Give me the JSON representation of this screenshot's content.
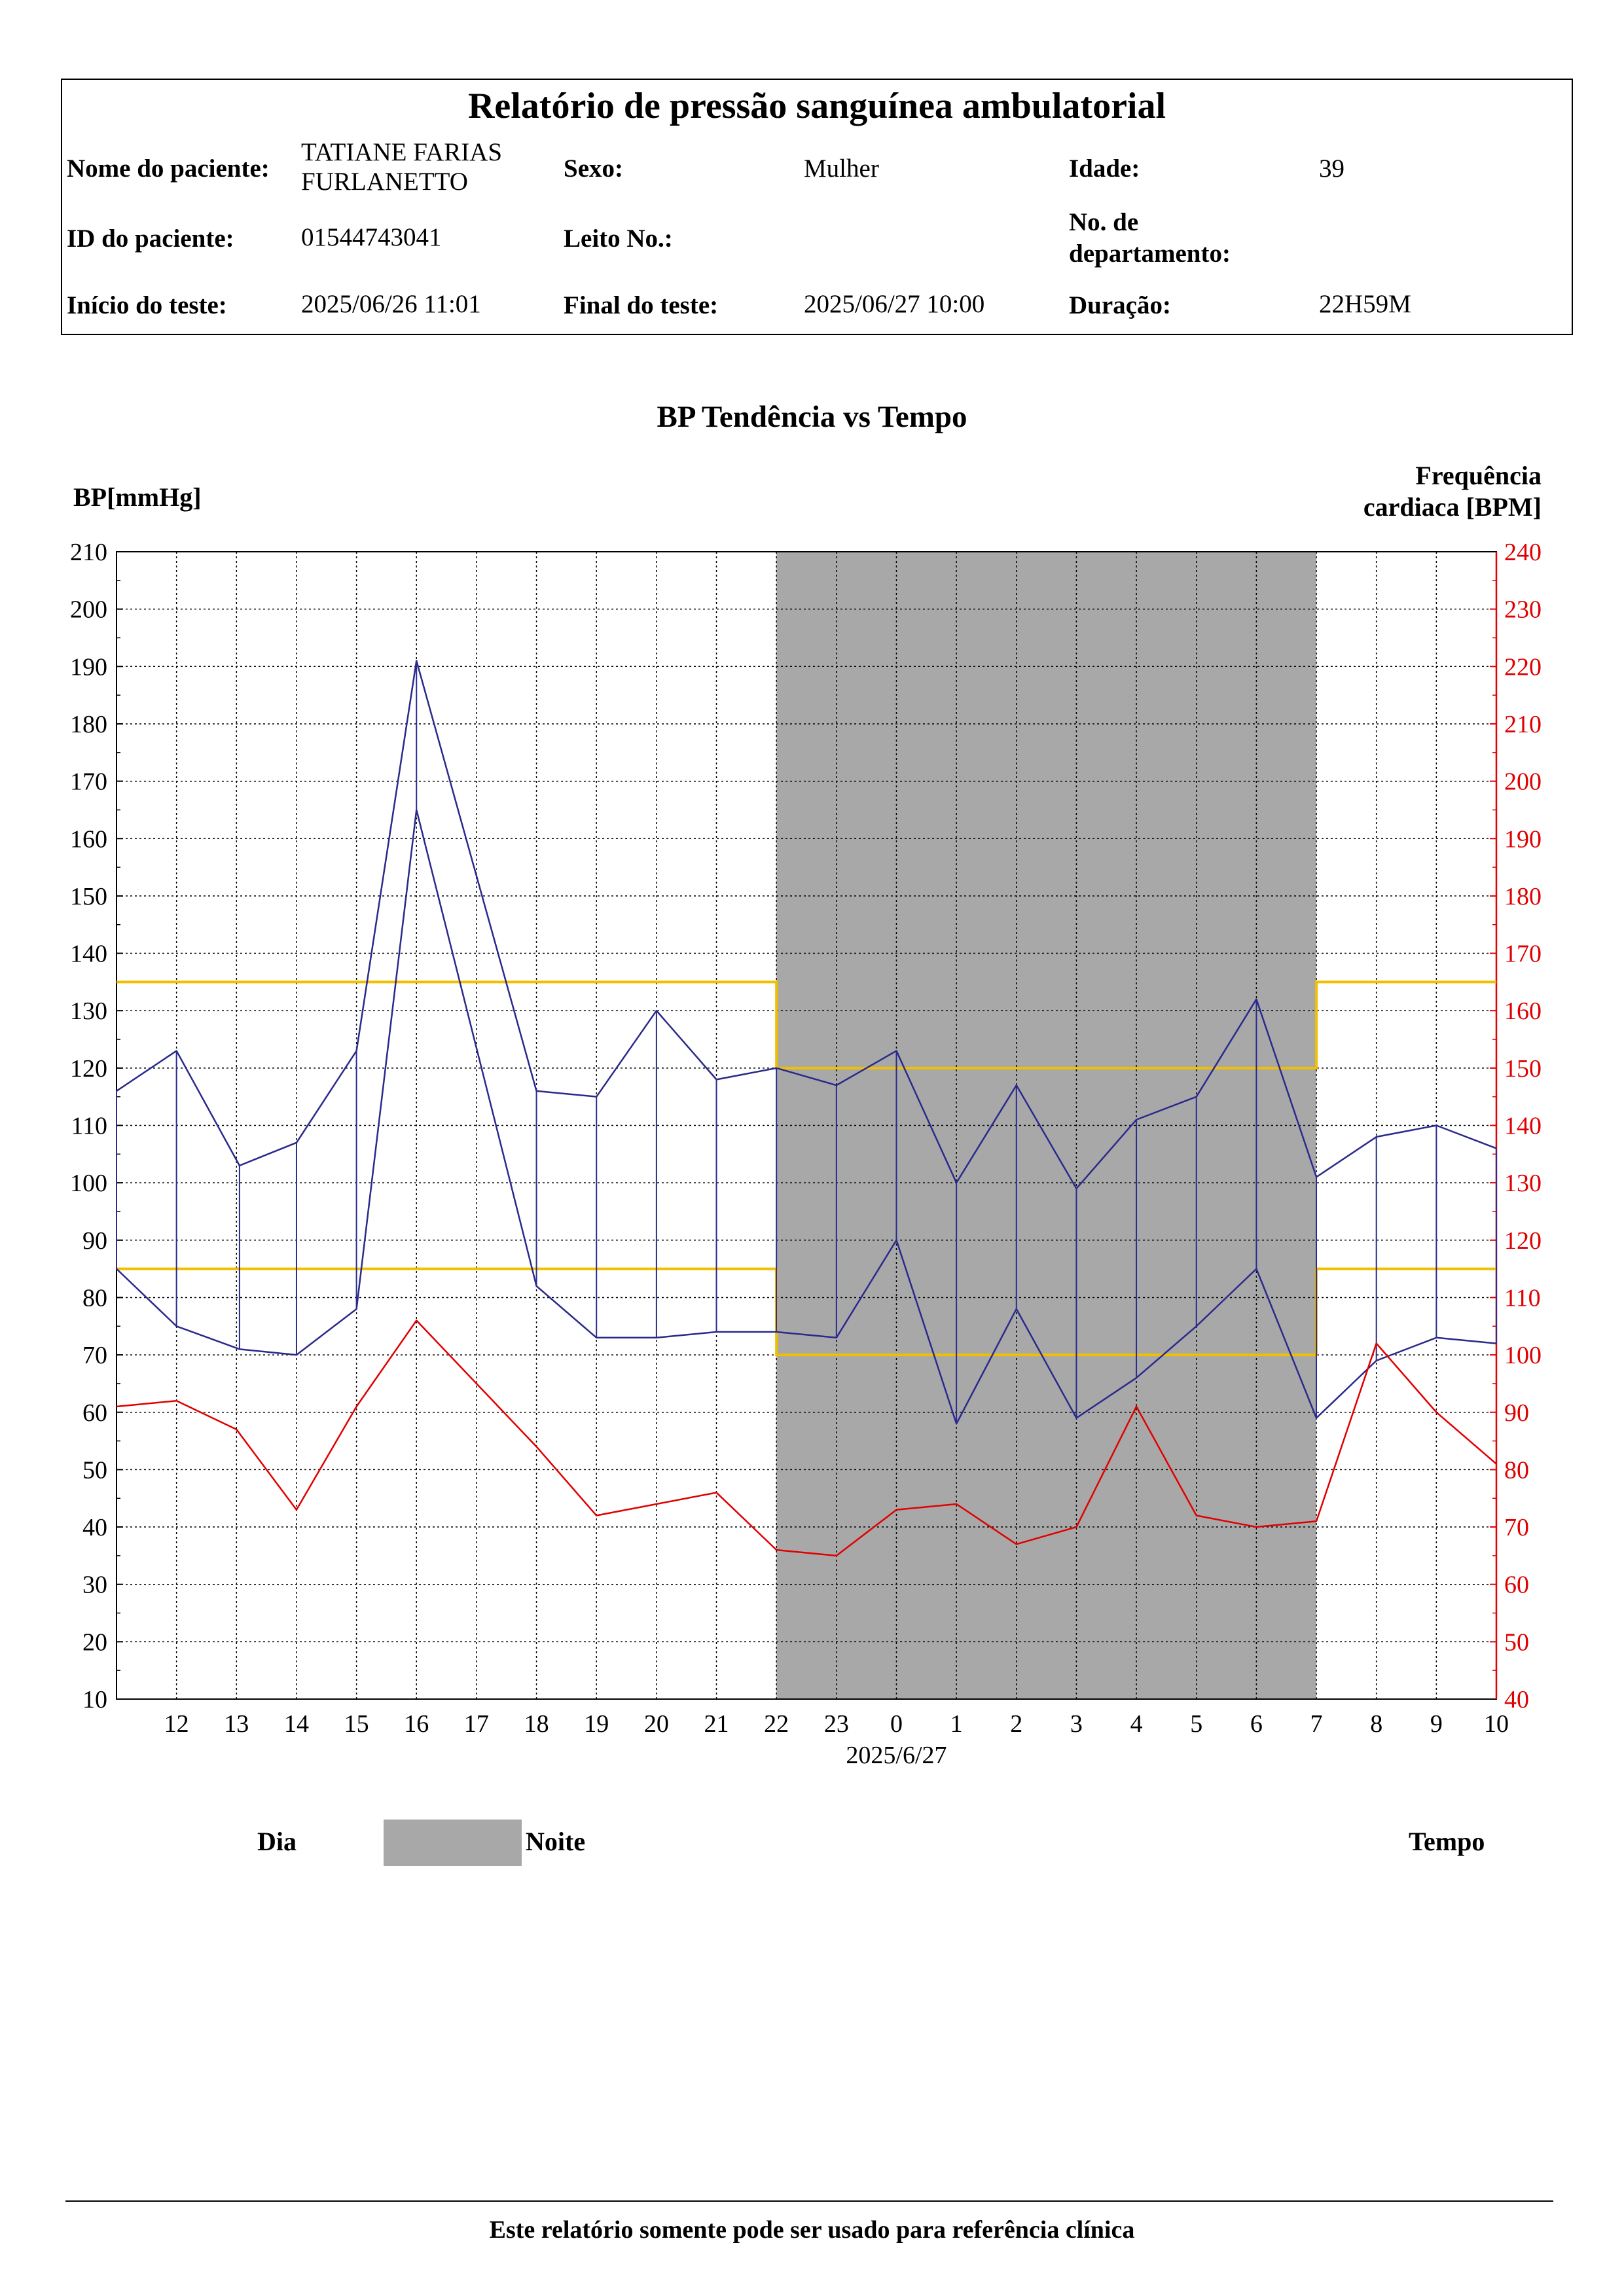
{
  "header": {
    "title": "Relatório de pressão sanguínea ambulatorial",
    "patient_name_label": "Nome do paciente:",
    "patient_name_line1": "TATIANE FARIAS",
    "patient_name_line2": "FURLANETTO",
    "sex_label": "Sexo:",
    "sex_value": "Mulher",
    "age_label": "Idade:",
    "age_value": "39",
    "patient_id_label": "ID do paciente:",
    "patient_id_value": "01544743041",
    "bed_label": "Leito No.:",
    "bed_value": "",
    "dept_label_line1": "No. de",
    "dept_label_line2": "departamento:",
    "dept_value": "",
    "start_label": "Início do teste:",
    "start_value": "2025/06/26 11:01",
    "end_label": "Final do teste:",
    "end_value": "2025/06/27 10:00",
    "duration_label": "Duração:",
    "duration_value": "22H59M"
  },
  "chart_data": {
    "type": "line",
    "title": "BP Tendência vs Tempo",
    "ylabel_left": "BP[mmHg]",
    "ylabel_right_line1": "Frequência",
    "ylabel_right_line2": "cardiaca [BPM]",
    "ylim_left": [
      10,
      210
    ],
    "ylim_right": [
      40,
      240
    ],
    "yticks_left": [
      10,
      20,
      30,
      40,
      50,
      60,
      70,
      80,
      90,
      100,
      110,
      120,
      130,
      140,
      150,
      160,
      170,
      180,
      190,
      200,
      210
    ],
    "yticks_right": [
      40,
      50,
      60,
      70,
      80,
      90,
      100,
      110,
      120,
      130,
      140,
      150,
      160,
      170,
      180,
      190,
      200,
      210,
      220,
      230,
      240
    ],
    "xlim_hours": [
      11,
      34
    ],
    "xtick_labels": [
      "12",
      "13",
      "14",
      "15",
      "16",
      "17",
      "18",
      "19",
      "20",
      "21",
      "22",
      "23",
      "0",
      "1",
      "2",
      "3",
      "4",
      "5",
      "6",
      "7",
      "8",
      "9",
      "10"
    ],
    "xdate_label": "2025/6/27",
    "night_band_hours": [
      22,
      31
    ],
    "grid": true,
    "series": [
      {
        "key": "systolic",
        "color": "#2a2a8c",
        "x": [
          11,
          12,
          13.05,
          14,
          15,
          16,
          18,
          19,
          20,
          21,
          22,
          23,
          24,
          25,
          26,
          27,
          28,
          29,
          30,
          31,
          32,
          33,
          34
        ],
        "y": [
          116,
          123,
          103,
          107,
          123,
          191,
          116,
          115,
          130,
          118,
          120,
          117,
          123,
          100,
          117,
          99,
          111,
          115,
          132,
          101,
          108,
          110,
          106
        ]
      },
      {
        "key": "diastolic",
        "color": "#2a2a8c",
        "x": [
          11,
          12,
          13.05,
          14,
          15,
          16,
          18,
          19,
          20,
          21,
          22,
          23,
          24,
          25,
          26,
          27,
          28,
          29,
          30,
          31,
          32,
          33,
          34
        ],
        "y": [
          85,
          75,
          71,
          70,
          78,
          165,
          82,
          73,
          73,
          74,
          74,
          73,
          90,
          58,
          78,
          59,
          66,
          75,
          85,
          59,
          69,
          73,
          72
        ]
      },
      {
        "key": "heart_rate",
        "axis": "right",
        "color": "#e00000",
        "x": [
          11,
          12,
          13,
          14,
          15,
          16,
          18,
          19,
          20,
          21,
          22,
          23,
          24,
          25,
          26,
          27,
          28,
          29,
          30,
          31,
          32,
          33,
          34
        ],
        "y": [
          91,
          92,
          87,
          73,
          91,
          106,
          84,
          72,
          74,
          76,
          66,
          65,
          73,
          74,
          67,
          70,
          91,
          72,
          70,
          71,
          102,
          90,
          81
        ]
      }
    ],
    "thresholds": {
      "color": "#f0c000",
      "day_systolic": 135,
      "day_diastolic": 85,
      "night_systolic": 120,
      "night_diastolic": 70
    }
  },
  "legend": {
    "day_label": "Dia",
    "night_label": "Noite",
    "time_label": "Tempo"
  },
  "footer": {
    "note": "Este relatório somente pode ser usado para referência clínica"
  }
}
